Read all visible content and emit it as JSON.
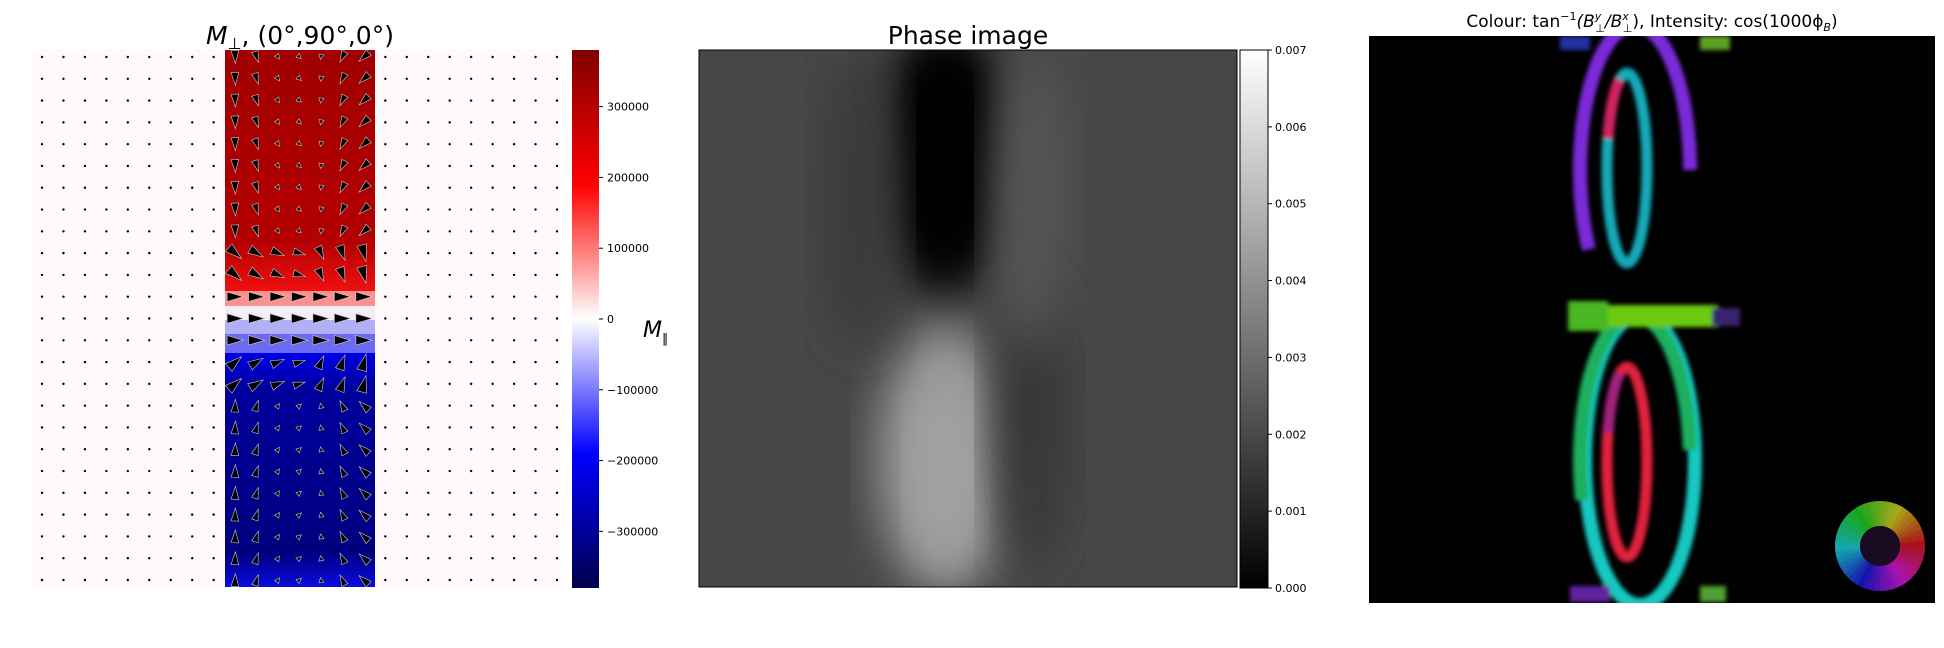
{
  "chart_data": [
    {
      "type": "quiver",
      "title": "M⊥, (0°,90°,0°)",
      "title_main": "M",
      "title_sub": "⊥",
      "title_rest": ", (0°,90°,0°)",
      "colorbar": {
        "label_main": "M",
        "label_sub": "∥",
        "range": [
          -380000,
          380000
        ],
        "ticks": [
          300000,
          200000,
          100000,
          0,
          -100000,
          -200000,
          -300000
        ],
        "tick_labels": [
          "300000",
          "200000",
          "100000",
          "0",
          "−100000",
          "−200000",
          "−300000"
        ],
        "colormap": "seismic"
      },
      "grid": {
        "cols": 25,
        "rows": 25
      },
      "magnet": {
        "col_start": 9,
        "col_end": 15,
        "upper_value": 360000,
        "lower_value": -360000
      }
    },
    {
      "type": "heatmap",
      "title": "Phase image",
      "colormap": "gray",
      "colorbar": {
        "range": [
          0.0,
          0.007
        ],
        "ticks": [
          0.0,
          0.001,
          0.002,
          0.003,
          0.004,
          0.005,
          0.006,
          0.007
        ],
        "tick_labels": [
          "0.000",
          "0.001",
          "0.002",
          "0.003",
          "0.004",
          "0.005",
          "0.006",
          "0.007"
        ]
      },
      "background_value": 0.0028,
      "features": [
        {
          "kind": "dark lobe",
          "min_value": 0.0,
          "position": "upper centre"
        },
        {
          "kind": "bright lobe",
          "max_value": 0.0046,
          "position": "lower centre"
        }
      ]
    },
    {
      "type": "image",
      "title_prefix": "Colour: tan",
      "title_exp": "−1",
      "title_b1": "(B",
      "title_b1_sup": "y",
      "title_b1_sub": "⊥",
      "title_mid": "/B",
      "title_b2_sup": "x",
      "title_b2_sub": "⊥",
      "title_rest": "),  Intensity: cos(1000ϕ",
      "title_phi_sub": "B",
      "title_end": ")",
      "background": "#000000",
      "legend": "hsv colour wheel, bottom-right"
    }
  ]
}
